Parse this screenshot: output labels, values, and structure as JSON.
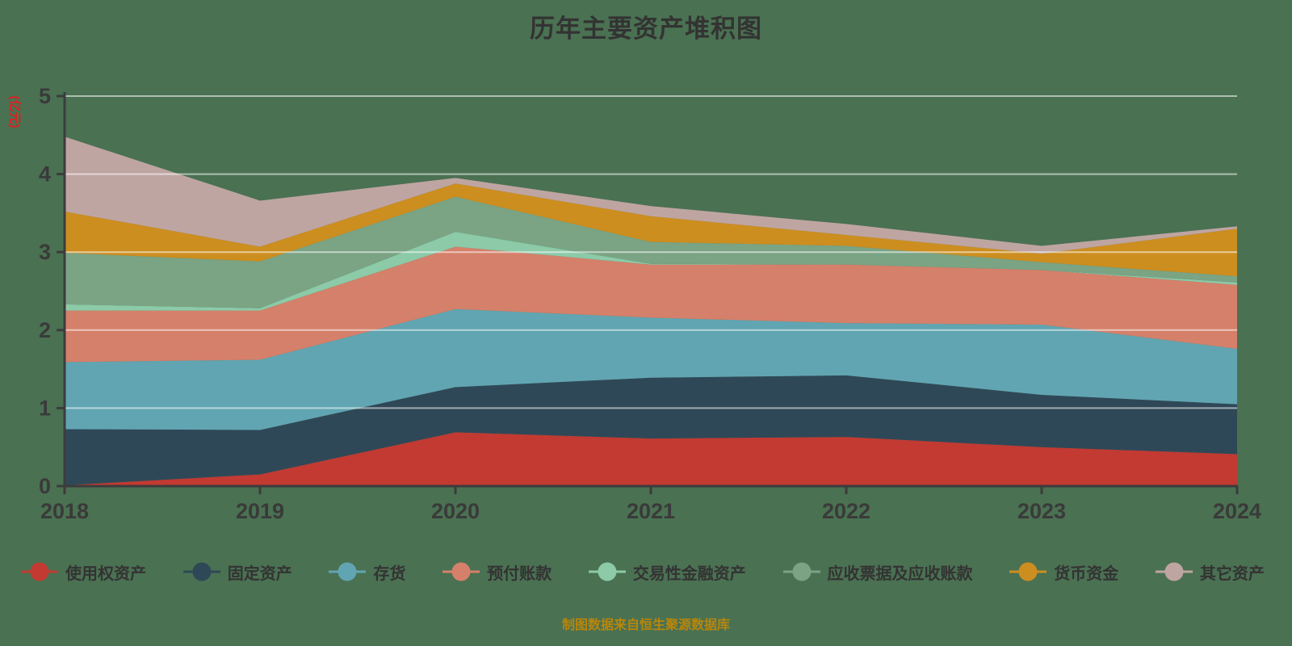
{
  "title": "历年主要资产堆积图",
  "y_axis_unit": "(亿元)",
  "footer": "制图数据来自恒生聚源数据库",
  "colors": {
    "background": "#4a7152",
    "axis": "#3c3c3c",
    "tick_label": "#3a3a3a",
    "gridline": "rgba(255,255,255,0.55)",
    "title": "#333333",
    "y_unit_label": "#e01f1f",
    "footer": "#b8860b"
  },
  "chart_data": {
    "type": "area",
    "stacked": true,
    "title": "历年主要资产堆积图",
    "ylabel": "(亿元)",
    "xlabel": "",
    "ylim": [
      0,
      5
    ],
    "yticks": [
      0,
      1,
      2,
      3,
      4,
      5
    ],
    "grid": true,
    "legend_position": "bottom",
    "x": [
      "2018",
      "2019",
      "2020",
      "2021",
      "2022",
      "2023",
      "2024"
    ],
    "series": [
      {
        "name": "使用权资产",
        "color": "#c23a32",
        "values": [
          0.01,
          0.15,
          0.69,
          0.61,
          0.63,
          0.5,
          0.41
        ]
      },
      {
        "name": "固定资产",
        "color": "#2f4858",
        "values": [
          0.72,
          0.57,
          0.58,
          0.78,
          0.79,
          0.67,
          0.64
        ]
      },
      {
        "name": "存货",
        "color": "#61a5b2",
        "values": [
          0.86,
          0.9,
          1.0,
          0.77,
          0.67,
          0.9,
          0.71
        ]
      },
      {
        "name": "预付账款",
        "color": "#d5806a",
        "values": [
          0.66,
          0.63,
          0.8,
          0.68,
          0.75,
          0.7,
          0.82
        ]
      },
      {
        "name": "交易性金融资产",
        "color": "#8ccaa8",
        "values": [
          0.08,
          0.03,
          0.19,
          0.01,
          0.0,
          0.0,
          0.03
        ]
      },
      {
        "name": "应收票据及应收账款",
        "color": "#7aa484",
        "values": [
          0.66,
          0.6,
          0.45,
          0.28,
          0.24,
          0.1,
          0.08
        ]
      },
      {
        "name": "货币资金",
        "color": "#cd8e20",
        "values": [
          0.53,
          0.19,
          0.17,
          0.33,
          0.14,
          0.11,
          0.61
        ]
      },
      {
        "name": "其它资产",
        "color": "#bfa5a2",
        "values": [
          0.96,
          0.59,
          0.07,
          0.13,
          0.14,
          0.1,
          0.03
        ]
      }
    ]
  }
}
